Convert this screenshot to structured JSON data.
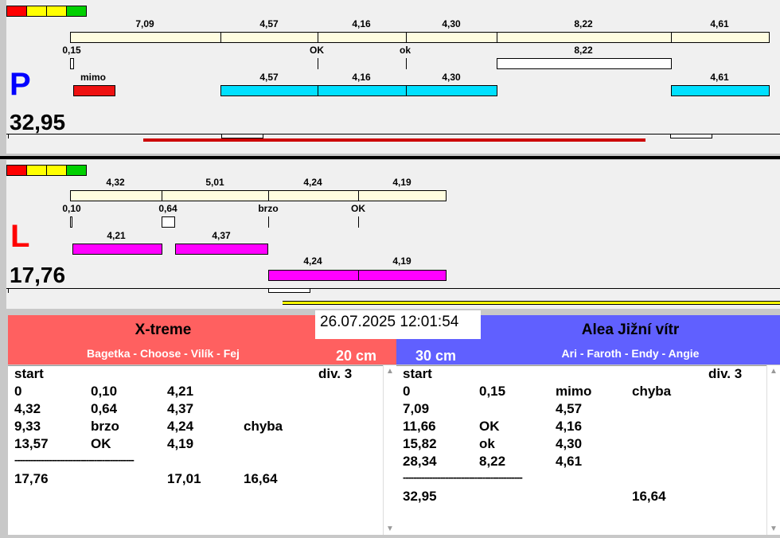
{
  "colors": {
    "strip": [
      "#ff0000",
      "#ffff00",
      "#ffff00",
      "#00d000"
    ],
    "split_bar": "#fffde0",
    "p_letter": "#0000ff",
    "l_letter": "#ff0000",
    "p_run": "#00e0ff",
    "l_run": "#ff00ff",
    "p_progress": "#cc0000",
    "l_progress": "#ffff00",
    "team_left_bg": "#ff6060",
    "team_right_bg": "#6060ff"
  },
  "trackP": {
    "letter": "P",
    "total": "32,95",
    "splits": [
      "7,09",
      "4,57",
      "4,16",
      "4,30",
      "8,22",
      "4,61"
    ],
    "reactions": [
      "0,15",
      "OK",
      "ok"
    ],
    "pause_label": "8,22",
    "runs": [
      "mimo",
      "4,57",
      "4,16",
      "4,30",
      "4,61"
    ]
  },
  "trackL": {
    "letter": "L",
    "total": "17,76",
    "splits": [
      "4,32",
      "5,01",
      "4,24",
      "4,19"
    ],
    "reactions": [
      "0,10",
      "0,64",
      "brzo",
      "OK"
    ],
    "runs_a": [
      "4,21",
      "4,37"
    ],
    "runs_b": [
      "4,24",
      "4,19"
    ]
  },
  "datetime": "26.07.2025 12:01:54",
  "teamLeft": {
    "name": "X-treme",
    "members": "Bagetka - Choose - Vilík - Fej",
    "height": "20 cm",
    "header": {
      "start": "start",
      "div": "div. 3"
    },
    "rows": [
      [
        "0",
        "0,10",
        "4,21",
        ""
      ],
      [
        "4,32",
        "0,64",
        "4,37",
        ""
      ],
      [
        "9,33",
        "brzo",
        "4,24",
        "chyba"
      ],
      [
        "13,57",
        "OK",
        "4,19",
        ""
      ]
    ],
    "separator": "---------------------------------------------",
    "totals": [
      "17,76",
      "",
      "17,01",
      "16,64"
    ]
  },
  "teamRight": {
    "name": "Alea Jižní vítr",
    "members": "Ari - Faroth - Endy - Angie",
    "height": "30 cm",
    "header": {
      "start": "start",
      "div": "div. 3"
    },
    "rows": [
      [
        "0",
        "0,15",
        "mimo",
        "chyba"
      ],
      [
        "7,09",
        "",
        "4,57",
        ""
      ],
      [
        "11,66",
        "OK",
        "4,16",
        ""
      ],
      [
        "15,82",
        "ok",
        "4,30",
        ""
      ],
      [
        "28,34",
        "8,22",
        "4,61",
        ""
      ]
    ],
    "separator": "---------------------------------------------",
    "totals": [
      "32,95",
      "",
      "",
      "16,64"
    ]
  }
}
